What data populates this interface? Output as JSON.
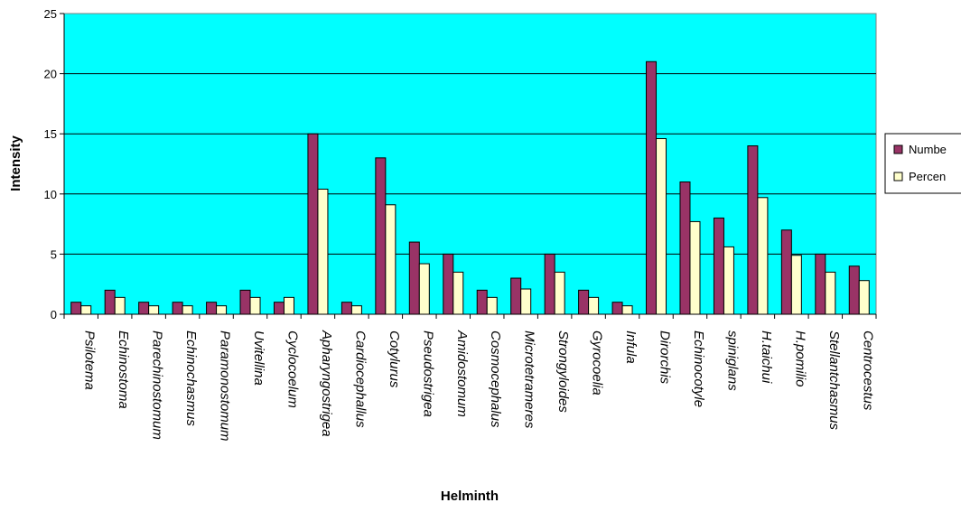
{
  "chart_data": {
    "type": "bar",
    "title": "",
    "xlabel": "Helminth",
    "ylabel": "Intensity",
    "ylim": [
      0,
      25
    ],
    "yticks": [
      0,
      5,
      10,
      15,
      20,
      25
    ],
    "grid": true,
    "plot_background": "#00ffff",
    "legend_position": "right",
    "categories": [
      "Psilotema",
      "Echinostoma",
      "Parechinostomum",
      "Echinochasmus",
      "Paramonostomum",
      "Uvitellina",
      "Cyclocoelum",
      "Apharyngostrigea",
      "Cardiocephallus",
      "Cotylurus",
      "Pseudostrigea",
      "Amidostomum",
      "Cosmocephalus",
      "Microtetrameres",
      "Strongyloides",
      "Gyrocoelia",
      "Infula",
      "Dirorchis",
      "Echinocotyle",
      "spiniglans",
      "H.taichui",
      "H.pomilio",
      "Stellantchasmus",
      "Centrocestus"
    ],
    "series": [
      {
        "name": "Numbe",
        "color": "#993366",
        "values": [
          1,
          2,
          1,
          1,
          1,
          2,
          1,
          15,
          1,
          13,
          6,
          5,
          2,
          3,
          5,
          2,
          1,
          21,
          11,
          8,
          14,
          7,
          5,
          4
        ]
      },
      {
        "name": "Percen",
        "color": "#ffffcc",
        "values": [
          0.7,
          1.4,
          0.7,
          0.7,
          0.7,
          1.4,
          1.4,
          10.4,
          0.7,
          9.1,
          4.2,
          3.5,
          1.4,
          2.1,
          3.5,
          1.4,
          0.7,
          14.6,
          7.7,
          5.6,
          9.7,
          4.9,
          3.5,
          2.8
        ]
      }
    ]
  }
}
